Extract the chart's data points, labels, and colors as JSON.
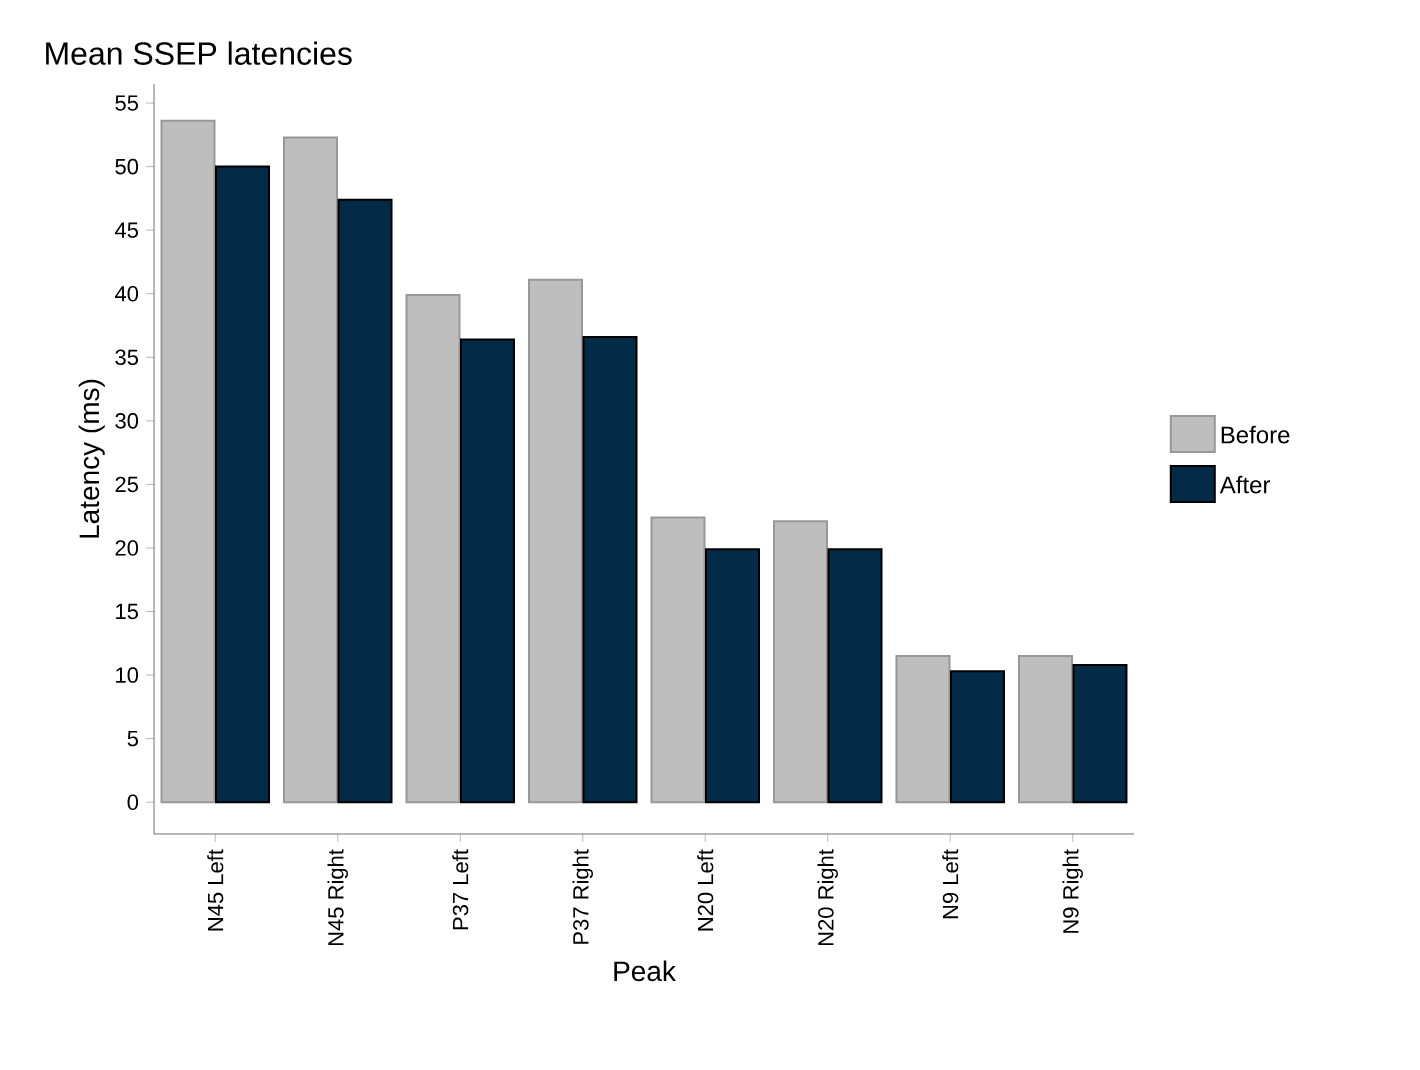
{
  "chart_data": {
    "type": "bar",
    "title": "Mean SSEP latencies",
    "xlabel": "Peak",
    "ylabel": "Latency (ms)",
    "categories": [
      "N45 Left",
      "N45 Right",
      "P37 Left",
      "P37 Right",
      "N20 Left",
      "N20 Right",
      "N9 Left",
      "N9 Right"
    ],
    "series": [
      {
        "name": "Before",
        "color": "#bebebe",
        "values": [
          53.6,
          52.3,
          39.9,
          41.1,
          22.4,
          22.1,
          11.5,
          11.5
        ]
      },
      {
        "name": "After",
        "color": "#032b47",
        "values": [
          50.0,
          47.4,
          36.4,
          36.6,
          19.9,
          19.9,
          10.3,
          10.8
        ]
      }
    ],
    "ylim": [
      -2.5,
      56.5
    ],
    "yticks": [
      0,
      5,
      10,
      15,
      20,
      25,
      30,
      35,
      40,
      45,
      50,
      55
    ],
    "grid": false,
    "legend": "right"
  }
}
